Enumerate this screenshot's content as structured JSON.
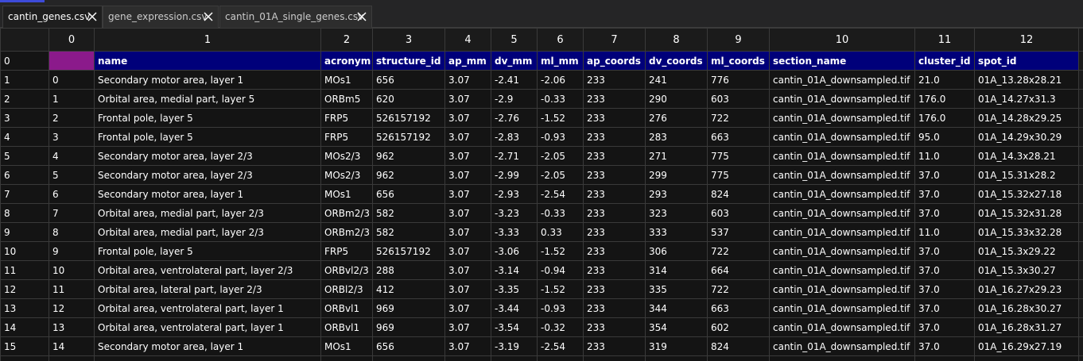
{
  "tabs": [
    {
      "label": "cantin_genes.csv",
      "active": true
    },
    {
      "label": "gene_expression.csv",
      "active": false
    },
    {
      "label": "cantin_01A_single_genes.csv",
      "active": false
    }
  ],
  "grid": {
    "column_indices": [
      "0",
      "1",
      "2",
      "3",
      "4",
      "5",
      "6",
      "7",
      "8",
      "9",
      "10",
      "11",
      "12"
    ],
    "header_row_index": "0",
    "header_cells": [
      "",
      "name",
      "acronym",
      "structure_id",
      "ap_mm",
      "dv_mm",
      "ml_mm",
      "ap_coords",
      "dv_coords",
      "ml_coords",
      "section_name",
      "cluster_id",
      "spot_id"
    ],
    "rows": [
      {
        "idx": "1",
        "cells": [
          "0",
          "Secondary motor area, layer 1",
          "MOs1",
          "656",
          "3.07",
          "-2.41",
          "-2.06",
          "233",
          "241",
          "776",
          "cantin_01A_downsampled.tif",
          "21.0",
          "01A_13.28x28.21"
        ]
      },
      {
        "idx": "2",
        "cells": [
          "1",
          "Orbital area, medial part, layer 5",
          "ORBm5",
          "620",
          "3.07",
          "-2.9",
          "-0.33",
          "233",
          "290",
          "603",
          "cantin_01A_downsampled.tif",
          "176.0",
          "01A_14.27x31.3"
        ]
      },
      {
        "idx": "3",
        "cells": [
          "2",
          "Frontal pole, layer 5",
          "FRP5",
          "526157192",
          "3.07",
          "-2.76",
          "-1.52",
          "233",
          "276",
          "722",
          "cantin_01A_downsampled.tif",
          "176.0",
          "01A_14.28x29.25"
        ]
      },
      {
        "idx": "4",
        "cells": [
          "3",
          "Frontal pole, layer 5",
          "FRP5",
          "526157192",
          "3.07",
          "-2.83",
          "-0.93",
          "233",
          "283",
          "663",
          "cantin_01A_downsampled.tif",
          "95.0",
          "01A_14.29x30.29"
        ]
      },
      {
        "idx": "5",
        "cells": [
          "4",
          "Secondary motor area, layer 2/3",
          "MOs2/3",
          "962",
          "3.07",
          "-2.71",
          "-2.05",
          "233",
          "271",
          "775",
          "cantin_01A_downsampled.tif",
          "11.0",
          "01A_14.3x28.21"
        ]
      },
      {
        "idx": "6",
        "cells": [
          "5",
          "Secondary motor area, layer 2/3",
          "MOs2/3",
          "962",
          "3.07",
          "-2.99",
          "-2.05",
          "233",
          "299",
          "775",
          "cantin_01A_downsampled.tif",
          "37.0",
          "01A_15.31x28.2"
        ]
      },
      {
        "idx": "7",
        "cells": [
          "6",
          "Secondary motor area, layer 1",
          "MOs1",
          "656",
          "3.07",
          "-2.93",
          "-2.54",
          "233",
          "293",
          "824",
          "cantin_01A_downsampled.tif",
          "37.0",
          "01A_15.32x27.18"
        ]
      },
      {
        "idx": "8",
        "cells": [
          "7",
          "Orbital area, medial part, layer 2/3",
          "ORBm2/3",
          "582",
          "3.07",
          "-3.23",
          "-0.33",
          "233",
          "323",
          "603",
          "cantin_01A_downsampled.tif",
          "37.0",
          "01A_15.32x31.28"
        ]
      },
      {
        "idx": "9",
        "cells": [
          "8",
          "Orbital area, medial part, layer 2/3",
          "ORBm2/3",
          "582",
          "3.07",
          "-3.33",
          "0.33",
          "233",
          "333",
          "537",
          "cantin_01A_downsampled.tif",
          "11.0",
          "01A_15.33x32.28"
        ]
      },
      {
        "idx": "10",
        "cells": [
          "9",
          "Frontal pole, layer 5",
          "FRP5",
          "526157192",
          "3.07",
          "-3.06",
          "-1.52",
          "233",
          "306",
          "722",
          "cantin_01A_downsampled.tif",
          "37.0",
          "01A_15.3x29.22"
        ]
      },
      {
        "idx": "11",
        "cells": [
          "10",
          "Orbital area, ventrolateral part, layer 2/3",
          "ORBvl2/3",
          "288",
          "3.07",
          "-3.14",
          "-0.94",
          "233",
          "314",
          "664",
          "cantin_01A_downsampled.tif",
          "37.0",
          "01A_15.3x30.27"
        ]
      },
      {
        "idx": "12",
        "cells": [
          "11",
          "Orbital area, lateral part, layer 2/3",
          "ORBl2/3",
          "412",
          "3.07",
          "-3.35",
          "-1.52",
          "233",
          "335",
          "722",
          "cantin_01A_downsampled.tif",
          "37.0",
          "01A_16.27x29.23"
        ]
      },
      {
        "idx": "13",
        "cells": [
          "12",
          "Orbital area, ventrolateral part, layer 1",
          "ORBvl1",
          "969",
          "3.07",
          "-3.44",
          "-0.93",
          "233",
          "344",
          "663",
          "cantin_01A_downsampled.tif",
          "37.0",
          "01A_16.28x30.27"
        ]
      },
      {
        "idx": "14",
        "cells": [
          "13",
          "Orbital area, ventrolateral part, layer 1",
          "ORBvl1",
          "969",
          "3.07",
          "-3.54",
          "-0.32",
          "233",
          "354",
          "602",
          "cantin_01A_downsampled.tif",
          "37.0",
          "01A_16.28x31.27"
        ]
      },
      {
        "idx": "15",
        "cells": [
          "14",
          "Secondary motor area, layer 1",
          "MOs1",
          "656",
          "3.07",
          "-3.19",
          "-2.54",
          "233",
          "319",
          "824",
          "cantin_01A_downsampled.tif",
          "37.0",
          "01A_16.29x27.19"
        ]
      }
    ]
  },
  "icons": {
    "tab_close": "close-icon"
  },
  "colors": {
    "header_row_bg": "#00007a",
    "index_cell_highlight": "#8b1a8b",
    "accent": "#3d4bd9",
    "background": "#141414"
  }
}
